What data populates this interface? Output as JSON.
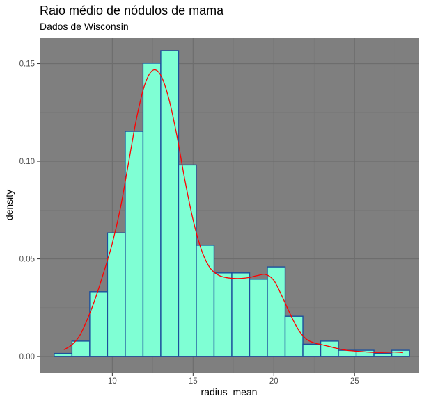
{
  "chart_data": {
    "type": "bar",
    "title": "Raio médio de nódulos de mama",
    "subtitle": "Dados de Wisconsin",
    "xlabel": "radius_mean",
    "ylabel": "density",
    "xlim": [
      5.5,
      29.0
    ],
    "ylim": [
      -0.0085,
      0.163
    ],
    "x_ticks": [
      10,
      15,
      20,
      25
    ],
    "x_tick_labels": [
      "10",
      "15",
      "20",
      "25"
    ],
    "y_ticks": [
      0.0,
      0.05,
      0.1,
      0.15
    ],
    "y_tick_labels": [
      "0.00",
      "0.05",
      "0.10",
      "0.15"
    ],
    "grid": true,
    "bin_width": 1.1,
    "bins": [
      {
        "x0": 6.4,
        "x1": 7.5,
        "density": 0.0016
      },
      {
        "x0": 7.5,
        "x1": 8.6,
        "density": 0.0079
      },
      {
        "x0": 8.6,
        "x1": 9.7,
        "density": 0.0332
      },
      {
        "x0": 9.7,
        "x1": 10.8,
        "density": 0.0633
      },
      {
        "x0": 10.8,
        "x1": 11.9,
        "density": 0.1153
      },
      {
        "x0": 11.9,
        "x1": 13.0,
        "density": 0.1502
      },
      {
        "x0": 13.0,
        "x1": 14.1,
        "density": 0.1566
      },
      {
        "x0": 14.1,
        "x1": 15.2,
        "density": 0.0981
      },
      {
        "x0": 15.2,
        "x1": 16.3,
        "density": 0.057
      },
      {
        "x0": 16.3,
        "x1": 17.4,
        "density": 0.0428
      },
      {
        "x0": 17.4,
        "x1": 18.5,
        "density": 0.0428
      },
      {
        "x0": 18.5,
        "x1": 19.6,
        "density": 0.0396
      },
      {
        "x0": 19.6,
        "x1": 20.7,
        "density": 0.0459
      },
      {
        "x0": 20.7,
        "x1": 21.8,
        "density": 0.0206
      },
      {
        "x0": 21.8,
        "x1": 22.9,
        "density": 0.0063
      },
      {
        "x0": 22.9,
        "x1": 24.0,
        "density": 0.0079
      },
      {
        "x0": 24.0,
        "x1": 25.1,
        "density": 0.0032
      },
      {
        "x0": 25.1,
        "x1": 26.2,
        "density": 0.0032
      },
      {
        "x0": 26.2,
        "x1": 27.3,
        "density": 0.0016
      },
      {
        "x0": 27.3,
        "x1": 28.4,
        "density": 0.0032
      }
    ],
    "density_curve": [
      [
        7.0,
        0.0035
      ],
      [
        7.5,
        0.006
      ],
      [
        8.0,
        0.011
      ],
      [
        8.5,
        0.02
      ],
      [
        9.0,
        0.031
      ],
      [
        9.5,
        0.044
      ],
      [
        10.0,
        0.058
      ],
      [
        10.5,
        0.076
      ],
      [
        11.0,
        0.099
      ],
      [
        11.5,
        0.122
      ],
      [
        12.0,
        0.139
      ],
      [
        12.5,
        0.1465
      ],
      [
        13.0,
        0.144
      ],
      [
        13.5,
        0.132
      ],
      [
        14.0,
        0.113
      ],
      [
        14.5,
        0.09
      ],
      [
        15.0,
        0.07
      ],
      [
        15.5,
        0.055
      ],
      [
        16.0,
        0.046
      ],
      [
        16.5,
        0.042
      ],
      [
        17.0,
        0.0405
      ],
      [
        17.5,
        0.04
      ],
      [
        18.0,
        0.04
      ],
      [
        18.5,
        0.0405
      ],
      [
        19.0,
        0.0415
      ],
      [
        19.5,
        0.042
      ],
      [
        20.0,
        0.039
      ],
      [
        20.5,
        0.031
      ],
      [
        21.0,
        0.022
      ],
      [
        21.5,
        0.014
      ],
      [
        22.0,
        0.009
      ],
      [
        22.5,
        0.007
      ],
      [
        23.0,
        0.006
      ],
      [
        23.5,
        0.005
      ],
      [
        24.0,
        0.004
      ],
      [
        24.5,
        0.0032
      ],
      [
        25.0,
        0.0028
      ],
      [
        25.5,
        0.0025
      ],
      [
        26.0,
        0.0022
      ],
      [
        26.5,
        0.0021
      ],
      [
        27.0,
        0.0022
      ],
      [
        27.5,
        0.0023
      ],
      [
        28.0,
        0.002
      ]
    ],
    "colors": {
      "panel_background": "#7f7f7f",
      "grid_major": "#6d6d6d",
      "grid_minor": "#767676",
      "bar_fill": "#7fffd4",
      "bar_outline": "#1c4f9c",
      "density_line": "#ff0000",
      "tick_text": "#4d4d4d"
    }
  }
}
